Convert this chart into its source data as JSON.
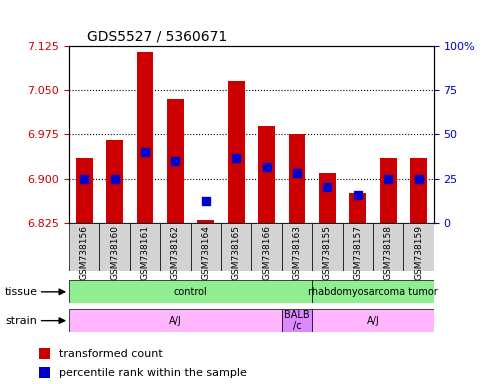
{
  "title": "GDS5527 / 5360671",
  "samples": [
    "GSM738156",
    "GSM738160",
    "GSM738161",
    "GSM738162",
    "GSM738164",
    "GSM738165",
    "GSM738166",
    "GSM738163",
    "GSM738155",
    "GSM738157",
    "GSM738158",
    "GSM738159"
  ],
  "bar_bottom": 6.825,
  "bar_tops": [
    6.935,
    6.965,
    7.115,
    7.035,
    6.83,
    7.065,
    6.99,
    6.975,
    6.91,
    6.875,
    6.935,
    6.935
  ],
  "percentile_values": [
    6.9,
    6.9,
    6.945,
    6.93,
    6.862,
    6.935,
    6.92,
    6.91,
    6.885,
    6.872,
    6.9,
    6.9
  ],
  "ylim_min": 6.825,
  "ylim_max": 7.125,
  "yticks": [
    6.825,
    6.9,
    6.975,
    7.05,
    7.125
  ],
  "right_yticks": [
    0,
    25,
    50,
    75,
    100
  ],
  "bar_color": "#cc0000",
  "dot_color": "#0000cc",
  "legend_items": [
    {
      "label": "transformed count",
      "color": "#cc0000"
    },
    {
      "label": "percentile rank within the sample",
      "color": "#0000cc"
    }
  ]
}
